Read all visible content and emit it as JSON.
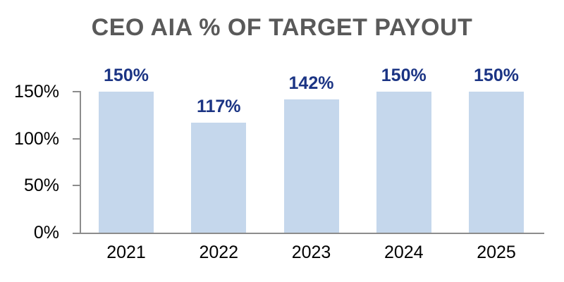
{
  "chart_data": {
    "type": "bar",
    "title": "CEO AIA % OF TARGET PAYOUT",
    "categories": [
      "2021",
      "2022",
      "2023",
      "2024",
      "2025"
    ],
    "values": [
      150,
      117,
      142,
      150,
      150
    ],
    "data_labels": [
      "150%",
      "117%",
      "142%",
      "150%",
      "150%"
    ],
    "y_ticks": [
      {
        "label": "150%",
        "value": 150
      },
      {
        "label": "100%",
        "value": 100
      },
      {
        "label": "50%",
        "value": 50
      },
      {
        "label": "0%",
        "value": 0
      }
    ],
    "ylim": [
      0,
      150
    ],
    "xlabel": "",
    "ylabel": "",
    "grid": false,
    "legend": false,
    "colors": {
      "bar_fill": "#C5D7EC",
      "data_label": "#1B3484",
      "title": "#595959",
      "axis_line": "#8C8C8C",
      "tick_label": "#000000"
    }
  }
}
